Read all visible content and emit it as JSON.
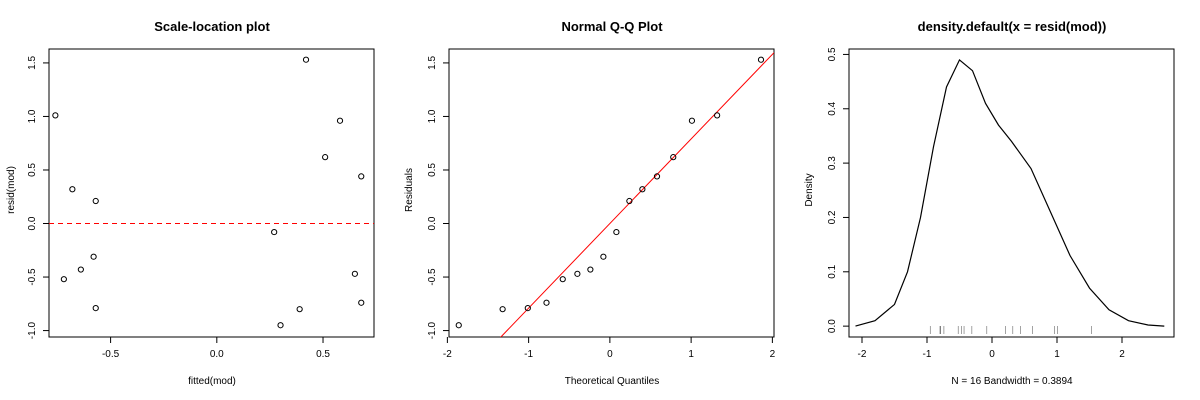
{
  "colors": {
    "reference_line": "#ff0000",
    "points": "#000000",
    "density_line": "#000000"
  },
  "chart_data": [
    {
      "type": "scatter",
      "title": "Scale-location plot",
      "xlabel": "fitted(mod)",
      "ylabel": "resid(mod)",
      "xlim": [
        -0.79,
        0.74
      ],
      "ylim": [
        -1.06,
        1.63
      ],
      "xticks": [
        -0.5,
        0.0,
        0.5
      ],
      "xtick_labels": [
        "-0.5",
        "0.0",
        "0.5"
      ],
      "yticks": [
        -1.0,
        -0.5,
        0.0,
        0.5,
        1.0,
        1.5
      ],
      "ytick_labels": [
        "-1.0",
        "-0.5",
        "0.0",
        "0.5",
        "1.0",
        "1.5"
      ],
      "reference_line": {
        "y": 0,
        "style": "dashed",
        "color": "#ff0000"
      },
      "points": [
        {
          "x": -0.76,
          "y": 1.01
        },
        {
          "x": -0.68,
          "y": 0.32
        },
        {
          "x": -0.57,
          "y": 0.21
        },
        {
          "x": -0.72,
          "y": -0.52
        },
        {
          "x": -0.64,
          "y": -0.43
        },
        {
          "x": -0.58,
          "y": -0.31
        },
        {
          "x": -0.57,
          "y": -0.79
        },
        {
          "x": 0.27,
          "y": -0.08
        },
        {
          "x": 0.3,
          "y": -0.95
        },
        {
          "x": 0.39,
          "y": -0.8
        },
        {
          "x": 0.42,
          "y": 1.53
        },
        {
          "x": 0.51,
          "y": 0.62
        },
        {
          "x": 0.58,
          "y": 0.96
        },
        {
          "x": 0.65,
          "y": -0.47
        },
        {
          "x": 0.68,
          "y": 0.44
        },
        {
          "x": 0.68,
          "y": -0.74
        }
      ]
    },
    {
      "type": "scatter",
      "title": "Normal Q-Q Plot",
      "xlabel": "Theoretical Quantiles",
      "ylabel": "Residuals",
      "xlim": [
        -1.98,
        2.02
      ],
      "ylim": [
        -1.06,
        1.63
      ],
      "xticks": [
        -2,
        -1,
        0,
        1,
        2
      ],
      "xtick_labels": [
        "-2",
        "-1",
        "0",
        "1",
        "2"
      ],
      "yticks": [
        -1.0,
        -0.5,
        0.0,
        0.5,
        1.0,
        1.5
      ],
      "ytick_labels": [
        "-1.0",
        "-0.5",
        "0.0",
        "0.5",
        "1.0",
        "1.5"
      ],
      "reference_line": {
        "intercept": 0.0,
        "slope": 0.79,
        "color": "#ff0000"
      },
      "points": [
        {
          "x": -1.86,
          "y": -0.95
        },
        {
          "x": -1.32,
          "y": -0.8
        },
        {
          "x": -1.01,
          "y": -0.79
        },
        {
          "x": -0.78,
          "y": -0.74
        },
        {
          "x": -0.58,
          "y": -0.52
        },
        {
          "x": -0.4,
          "y": -0.47
        },
        {
          "x": -0.24,
          "y": -0.43
        },
        {
          "x": -0.08,
          "y": -0.31
        },
        {
          "x": 0.08,
          "y": -0.08
        },
        {
          "x": 0.24,
          "y": 0.21
        },
        {
          "x": 0.4,
          "y": 0.32
        },
        {
          "x": 0.58,
          "y": 0.44
        },
        {
          "x": 0.78,
          "y": 0.62
        },
        {
          "x": 1.01,
          "y": 0.96
        },
        {
          "x": 1.32,
          "y": 1.01
        },
        {
          "x": 1.86,
          "y": 1.53
        }
      ]
    },
    {
      "type": "line",
      "title": "density.default(x = resid(mod))",
      "xlabel": "N = 16   Bandwidth = 0.3894",
      "ylabel": "Density",
      "xlim": [
        -2.2,
        2.8
      ],
      "ylim": [
        -0.02,
        0.51
      ],
      "xticks": [
        -2,
        -1,
        0,
        1,
        2
      ],
      "xtick_labels": [
        "-2",
        "-1",
        "0",
        "1",
        "2"
      ],
      "yticks": [
        0.0,
        0.1,
        0.2,
        0.3,
        0.4,
        0.5
      ],
      "ytick_labels": [
        "0.0",
        "0.1",
        "0.2",
        "0.3",
        "0.4",
        "0.5"
      ],
      "curve": [
        {
          "x": -2.1,
          "y": 0.0
        },
        {
          "x": -1.8,
          "y": 0.01
        },
        {
          "x": -1.5,
          "y": 0.04
        },
        {
          "x": -1.3,
          "y": 0.1
        },
        {
          "x": -1.1,
          "y": 0.2
        },
        {
          "x": -0.9,
          "y": 0.33
        },
        {
          "x": -0.7,
          "y": 0.44
        },
        {
          "x": -0.5,
          "y": 0.49
        },
        {
          "x": -0.3,
          "y": 0.47
        },
        {
          "x": -0.1,
          "y": 0.41
        },
        {
          "x": 0.1,
          "y": 0.37
        },
        {
          "x": 0.3,
          "y": 0.34
        },
        {
          "x": 0.6,
          "y": 0.29
        },
        {
          "x": 0.9,
          "y": 0.21
        },
        {
          "x": 1.2,
          "y": 0.13
        },
        {
          "x": 1.5,
          "y": 0.07
        },
        {
          "x": 1.8,
          "y": 0.03
        },
        {
          "x": 2.1,
          "y": 0.01
        },
        {
          "x": 2.4,
          "y": 0.002
        },
        {
          "x": 2.65,
          "y": 0.0
        }
      ],
      "rug": [
        -0.95,
        -0.8,
        -0.79,
        -0.74,
        -0.52,
        -0.47,
        -0.43,
        -0.31,
        -0.08,
        0.21,
        0.32,
        0.44,
        0.62,
        0.96,
        1.01,
        1.53
      ]
    }
  ]
}
